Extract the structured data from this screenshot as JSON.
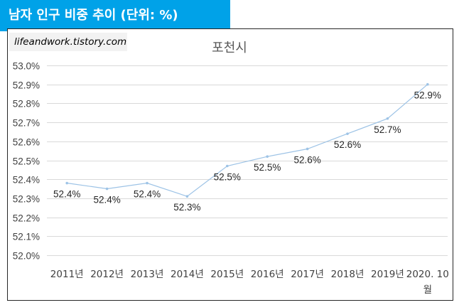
{
  "header": {
    "title": "남자 인구 비중 추이 (단위: %)"
  },
  "watermark": {
    "text": "lifeandwork.tistory.com"
  },
  "colors": {
    "header_bg": "#00a2e8",
    "line": "#9dc3e6",
    "grid": "#d9d9d9"
  },
  "chart_data": {
    "type": "line",
    "title": "포천시",
    "xlabel": "",
    "ylabel": "",
    "ylim": [
      52.0,
      53.0
    ],
    "ytick_step": 0.1,
    "yticks": [
      "52.0%",
      "52.1%",
      "52.2%",
      "52.3%",
      "52.4%",
      "52.5%",
      "52.6%",
      "52.7%",
      "52.8%",
      "52.9%",
      "53.0%"
    ],
    "categories": [
      "2011년",
      "2012년",
      "2013년",
      "2014년",
      "2015년",
      "2016년",
      "2017년",
      "2018년",
      "2019년",
      "2020. 10월"
    ],
    "series": [
      {
        "name": "포천시",
        "values": [
          52.38,
          52.35,
          52.38,
          52.31,
          52.47,
          52.52,
          52.56,
          52.64,
          52.72,
          52.9
        ],
        "labels": [
          "52.4%",
          "52.4%",
          "52.4%",
          "52.3%",
          "52.5%",
          "52.5%",
          "52.6%",
          "52.6%",
          "52.7%",
          "52.9%"
        ]
      }
    ],
    "grid": true,
    "legend": "none"
  }
}
